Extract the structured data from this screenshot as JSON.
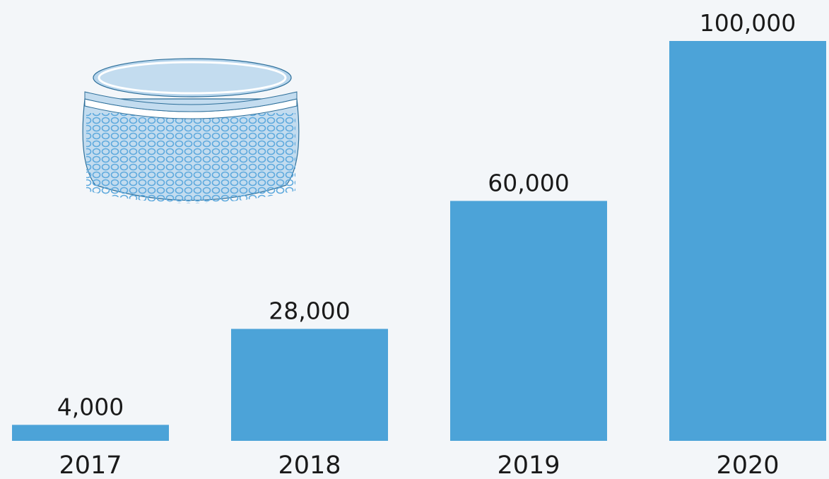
{
  "chart_data": {
    "type": "bar",
    "categories": [
      "2017",
      "2018",
      "2019",
      "2020"
    ],
    "values": [
      4000,
      28000,
      60000,
      100000
    ],
    "value_labels": [
      "4,000",
      "28,000",
      "60,000",
      "100,000"
    ],
    "title": "",
    "xlabel": "",
    "ylabel": "",
    "ylim": [
      0,
      100000
    ],
    "grid": false,
    "legend": "none"
  },
  "colors": {
    "background": "#f3f6f9",
    "bar": "#4ca3d8",
    "text": "#1a1a1a",
    "illustration_fill": "#c3dcef",
    "illustration_mesh": "#5ea9dd"
  },
  "illustration": {
    "icon": "smart-speaker-icon"
  }
}
